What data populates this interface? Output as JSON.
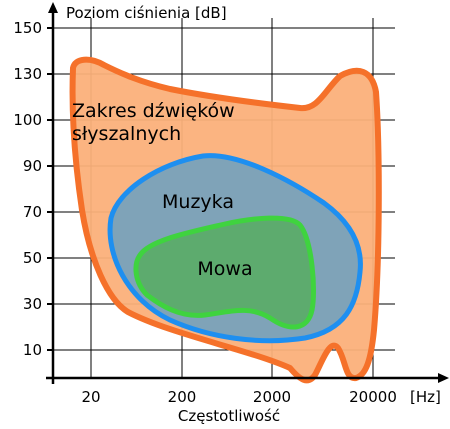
{
  "y_axis": {
    "title": "Poziom ciśnienia [dB]",
    "ticks": [
      "150",
      "130",
      "100",
      "90",
      "70",
      "50",
      "30",
      "10"
    ]
  },
  "x_axis": {
    "title": "Częstotliwość",
    "unit": "[Hz]",
    "ticks": [
      "20",
      "200",
      "2000",
      "20000"
    ]
  },
  "regions": {
    "hearing": {
      "label_line1": "Zakres dźwięków",
      "label_line2": "słyszalnych",
      "fill": "#fbb07a",
      "stroke": "#f5712a"
    },
    "music": {
      "label": "Muzyka",
      "fill": "#7fa3b8",
      "stroke": "#1e8ff0"
    },
    "speech": {
      "label": "Mowa",
      "fill": "#5dab6e",
      "stroke": "#3fd33f"
    }
  }
}
